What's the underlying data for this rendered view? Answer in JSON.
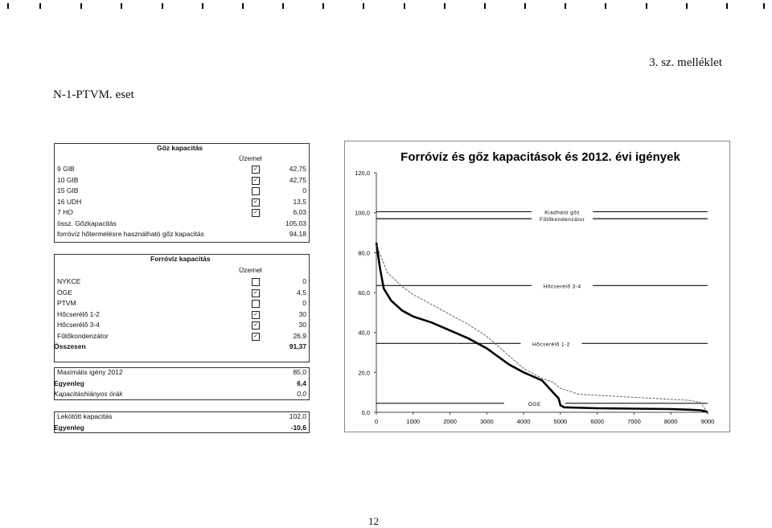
{
  "header": {
    "annex": "3. sz. melléklet",
    "case_title": "N-1-PTVM. eset",
    "page_number": "12"
  },
  "steam_table": {
    "title": "Gőz kapacitás",
    "status_header": "Üzemel",
    "rows": [
      {
        "label": "9 GIB",
        "checked": true,
        "value": "42,75"
      },
      {
        "label": "10 GIB",
        "checked": true,
        "value": "42,75"
      },
      {
        "label": "15 GIB",
        "checked": false,
        "value": "0"
      },
      {
        "label": "16 UDH",
        "checked": true,
        "value": "13,5"
      },
      {
        "label": "7 HO",
        "checked": true,
        "value": "6,03"
      }
    ],
    "total_label": "össz. Gőzkapacitás",
    "total_value": "105,03",
    "heating_label": "forróvíz hőtermelésre használható gőz kapacitás",
    "heating_value": "94,18"
  },
  "hotwater_table": {
    "title": "Forróvíz kapacitás",
    "status_header": "Üzemel",
    "rows": [
      {
        "label": "NYKCE",
        "checked": false,
        "value": "0"
      },
      {
        "label": "ÖGE",
        "checked": true,
        "value": "4,5"
      },
      {
        "label": "PTVM",
        "checked": false,
        "value": "0"
      },
      {
        "label": "Hőcserélő 1-2",
        "checked": true,
        "value": "30"
      },
      {
        "label": "Hőcserélő 3-4",
        "checked": true,
        "value": "30"
      },
      {
        "label": "Fűtőkondenzátor",
        "checked": true,
        "value": "26,9"
      }
    ],
    "total_label": "Összesen",
    "total_value": "91,37"
  },
  "demand_table": {
    "max_label": "Maximális igény 2012",
    "max_value": "85,0",
    "balance_label": "Egyenleg",
    "balance_value": "6,4",
    "shortage_label": "Kapacitáshiányos órák",
    "shortage_value": "0,0"
  },
  "contract_table": {
    "contracted_label": "Lekötött kapacitás",
    "contracted_value": "102,0",
    "balance_label": "Egyenleg",
    "balance_value": "-10,6"
  },
  "chart_data": {
    "type": "line",
    "title": "Forróvíz és gőz kapacitások és 2012. évi igények",
    "xlim": [
      0,
      9000
    ],
    "ylim": [
      0,
      120
    ],
    "x_ticks": [
      "0",
      "1000",
      "2000",
      "3000",
      "4000",
      "5000",
      "6000",
      "7000",
      "8000",
      "9000"
    ],
    "y_ticks": [
      "0,0",
      "20,0",
      "40,0",
      "60,0",
      "80,0",
      "100,0",
      "120,0"
    ],
    "grid": false,
    "reference_lines": [
      {
        "name": "Kiadható gőz",
        "y": 100.5
      },
      {
        "name": "Fűtőkondenzátor",
        "y": 97.0
      },
      {
        "name": "Hőcserélő 3-4",
        "y": 63.5
      },
      {
        "name": "Hőcserélő 1-2",
        "y": 34.5
      },
      {
        "name": "ÖGE",
        "y": 4.5
      }
    ],
    "series": [
      {
        "style": "thick",
        "x": [
          0,
          100,
          200,
          400,
          700,
          1000,
          1500,
          2000,
          2500,
          3000,
          3300,
          3600,
          4000,
          4500,
          4800,
          4950,
          5000,
          5100,
          6000,
          7000,
          8000,
          8500,
          8800,
          8950,
          9000
        ],
        "y": [
          85,
          72,
          62,
          56,
          51,
          48,
          45,
          41,
          37,
          32,
          28,
          24,
          20,
          16,
          10,
          7,
          3.5,
          2.5,
          2,
          1.8,
          1.6,
          1.3,
          1,
          0.5,
          0
        ]
      },
      {
        "style": "thin",
        "x": [
          0,
          300,
          700,
          1000,
          1500,
          2000,
          2500,
          3000,
          3500,
          4000,
          4500,
          4800,
          5000,
          5500,
          6000,
          6500,
          7000,
          7500,
          8000,
          8500,
          8800,
          9000
        ],
        "y": [
          84,
          70,
          63,
          59,
          54,
          49,
          44,
          38,
          30,
          22,
          17,
          15,
          12,
          9,
          8.5,
          8,
          7.5,
          7,
          6.5,
          6,
          5,
          0
        ]
      }
    ]
  }
}
